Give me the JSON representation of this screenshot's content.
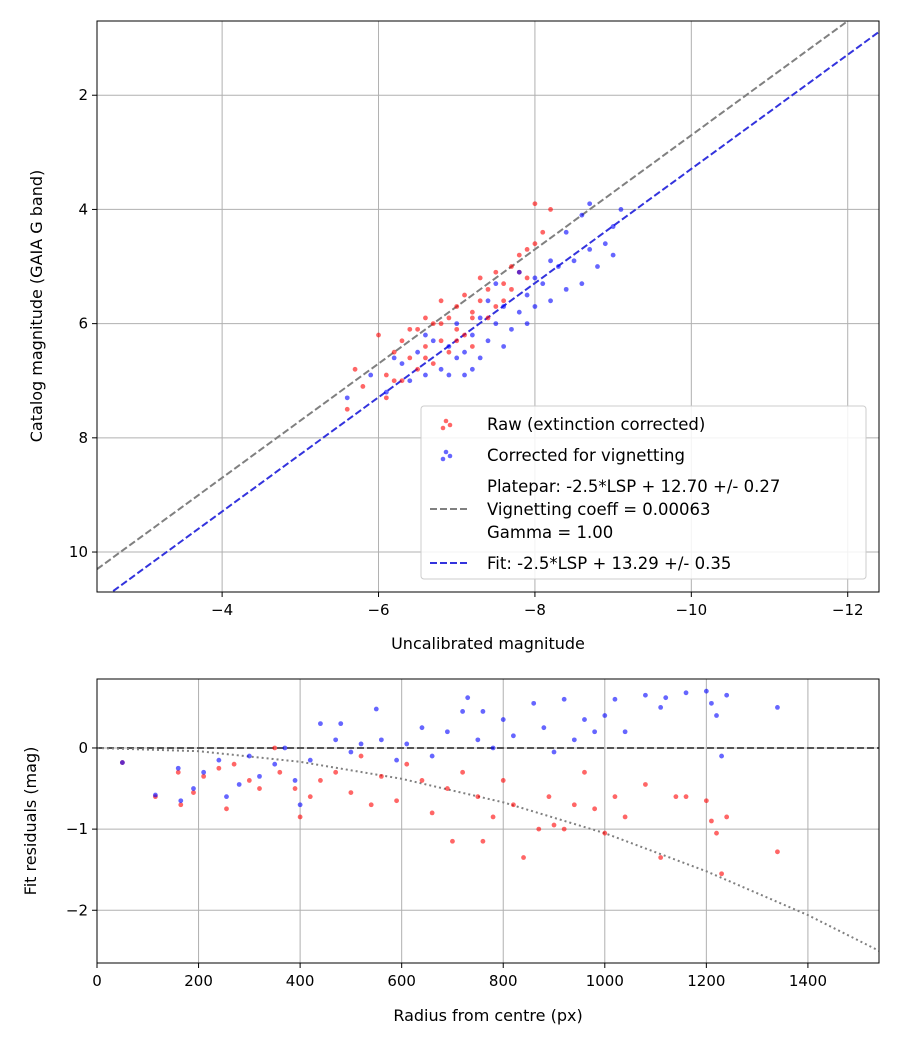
{
  "chart_data": [
    {
      "type": "scatter",
      "title": "",
      "xlabel": "Uncalibrated magnitude",
      "ylabel": "Catalog magnitude (GAIA G band)",
      "xlim": [
        -2.4,
        -12.4
      ],
      "ylim": [
        10.7,
        0.7
      ],
      "x_inverted": true,
      "y_inverted": true,
      "xticks": [
        -4,
        -6,
        -8,
        -10,
        -12
      ],
      "yticks": [
        2,
        4,
        6,
        8,
        10
      ],
      "xtick_labels": [
        "−4",
        "−6",
        "−8",
        "−10",
        "−12"
      ],
      "ytick_labels": [
        "2",
        "4",
        "6",
        "8",
        "10"
      ],
      "grid": true,
      "legend_position": "lower-right",
      "colors": {
        "raw": "#ff0000",
        "corrected": "#0000ff",
        "platepar": "#808080",
        "fit": "#3333dd"
      },
      "series": [
        {
          "name": "Raw (extinction corrected)",
          "kind": "points",
          "points": [
            [
              -5.6,
              7.5
            ],
            [
              -5.8,
              7.1
            ],
            [
              -5.7,
              6.8
            ],
            [
              -6.0,
              6.2
            ],
            [
              -6.1,
              6.9
            ],
            [
              -6.1,
              7.3
            ],
            [
              -6.2,
              6.5
            ],
            [
              -6.3,
              7.0
            ],
            [
              -6.3,
              6.3
            ],
            [
              -6.4,
              6.6
            ],
            [
              -6.5,
              6.1
            ],
            [
              -6.5,
              6.8
            ],
            [
              -6.6,
              6.4
            ],
            [
              -6.6,
              5.9
            ],
            [
              -6.7,
              6.7
            ],
            [
              -6.7,
              6.0
            ],
            [
              -6.8,
              6.3
            ],
            [
              -6.8,
              5.6
            ],
            [
              -6.9,
              6.5
            ],
            [
              -6.9,
              5.9
            ],
            [
              -7.0,
              6.1
            ],
            [
              -7.0,
              5.7
            ],
            [
              -7.1,
              6.2
            ],
            [
              -7.1,
              5.5
            ],
            [
              -7.2,
              5.8
            ],
            [
              -7.2,
              6.4
            ],
            [
              -7.3,
              5.6
            ],
            [
              -7.3,
              5.2
            ],
            [
              -7.4,
              5.9
            ],
            [
              -7.4,
              5.4
            ],
            [
              -7.5,
              5.1
            ],
            [
              -7.5,
              5.7
            ],
            [
              -7.6,
              5.3
            ],
            [
              -7.6,
              5.6
            ],
            [
              -7.7,
              5.0
            ],
            [
              -7.7,
              5.4
            ],
            [
              -7.8,
              4.8
            ],
            [
              -7.8,
              5.1
            ],
            [
              -7.9,
              4.7
            ],
            [
              -8.0,
              3.9
            ],
            [
              -8.1,
              4.4
            ],
            [
              -8.2,
              4.0
            ],
            [
              -8.0,
              4.6
            ],
            [
              -7.9,
              5.2
            ],
            [
              -6.4,
              6.1
            ],
            [
              -6.6,
              6.6
            ],
            [
              -6.2,
              7.0
            ],
            [
              -6.8,
              6.0
            ],
            [
              -7.0,
              6.3
            ],
            [
              -7.2,
              5.9
            ]
          ]
        },
        {
          "name": "Corrected for vignetting",
          "kind": "points",
          "points": [
            [
              -5.6,
              7.3
            ],
            [
              -5.9,
              6.9
            ],
            [
              -6.1,
              7.2
            ],
            [
              -6.3,
              6.7
            ],
            [
              -6.4,
              7.0
            ],
            [
              -6.5,
              6.5
            ],
            [
              -6.6,
              6.9
            ],
            [
              -6.7,
              6.3
            ],
            [
              -6.8,
              6.8
            ],
            [
              -6.9,
              6.4
            ],
            [
              -7.0,
              6.6
            ],
            [
              -7.0,
              6.0
            ],
            [
              -7.1,
              6.5
            ],
            [
              -7.2,
              6.2
            ],
            [
              -7.3,
              6.6
            ],
            [
              -7.3,
              5.9
            ],
            [
              -7.4,
              6.3
            ],
            [
              -7.5,
              6.0
            ],
            [
              -7.6,
              6.4
            ],
            [
              -7.6,
              5.7
            ],
            [
              -7.7,
              6.1
            ],
            [
              -7.8,
              5.8
            ],
            [
              -7.9,
              6.0
            ],
            [
              -7.9,
              5.5
            ],
            [
              -8.0,
              5.7
            ],
            [
              -8.1,
              5.3
            ],
            [
              -8.2,
              5.6
            ],
            [
              -8.3,
              5.0
            ],
            [
              -8.4,
              5.4
            ],
            [
              -8.5,
              4.9
            ],
            [
              -8.6,
              5.3
            ],
            [
              -8.7,
              4.7
            ],
            [
              -8.8,
              5.0
            ],
            [
              -8.9,
              4.6
            ],
            [
              -9.0,
              4.3
            ],
            [
              -9.1,
              4.0
            ],
            [
              -8.7,
              3.9
            ],
            [
              -8.4,
              4.4
            ],
            [
              -8.2,
              4.9
            ],
            [
              -7.5,
              5.3
            ],
            [
              -7.8,
              5.1
            ],
            [
              -6.9,
              6.9
            ],
            [
              -6.6,
              6.2
            ],
            [
              -7.2,
              6.8
            ],
            [
              -8.0,
              5.2
            ],
            [
              -9.0,
              4.8
            ],
            [
              -8.6,
              4.1
            ],
            [
              -7.4,
              5.6
            ],
            [
              -6.2,
              6.6
            ],
            [
              -7.1,
              6.9
            ]
          ]
        },
        {
          "name": "Platepar: -2.5*LSP + 12.70 +/- 0.27\nVignetting coeff = 0.00063\nGamma = 1.00",
          "kind": "line",
          "slope": 1,
          "intercept": 12.7
        },
        {
          "name": "Fit: -2.5*LSP + 13.29 +/- 0.35",
          "kind": "line",
          "slope": 1,
          "intercept": 13.29
        }
      ]
    },
    {
      "type": "scatter",
      "title": "",
      "xlabel": "Radius from centre (px)",
      "ylabel": "Fit residuals (mag)",
      "xlim": [
        0,
        1540
      ],
      "ylim": [
        -2.65,
        0.85
      ],
      "xticks": [
        0,
        200,
        400,
        600,
        800,
        1000,
        1200,
        1400
      ],
      "yticks": [
        0,
        -1,
        -2
      ],
      "xtick_labels": [
        "0",
        "200",
        "400",
        "600",
        "800",
        "1000",
        "1200",
        "1400"
      ],
      "ytick_labels": [
        "0",
        "−1",
        "−2"
      ],
      "grid": true,
      "colors": {
        "raw": "#ff0000",
        "corrected": "#0000ff",
        "zero_line": "#555555",
        "vignetting_curve": "#808080"
      },
      "series": [
        {
          "name": "Raw (extinction corrected)",
          "kind": "points",
          "points": [
            [
              50,
              -0.18
            ],
            [
              115,
              -0.6
            ],
            [
              160,
              -0.3
            ],
            [
              165,
              -0.7
            ],
            [
              190,
              -0.55
            ],
            [
              210,
              -0.35
            ],
            [
              240,
              -0.25
            ],
            [
              255,
              -0.75
            ],
            [
              270,
              -0.2
            ],
            [
              300,
              -0.4
            ],
            [
              320,
              -0.5
            ],
            [
              350,
              0.0
            ],
            [
              360,
              -0.3
            ],
            [
              390,
              -0.5
            ],
            [
              400,
              -0.85
            ],
            [
              420,
              -0.6
            ],
            [
              440,
              -0.4
            ],
            [
              470,
              -0.3
            ],
            [
              500,
              -0.55
            ],
            [
              520,
              -0.1
            ],
            [
              540,
              -0.7
            ],
            [
              560,
              -0.35
            ],
            [
              590,
              -0.65
            ],
            [
              610,
              -0.2
            ],
            [
              640,
              -0.4
            ],
            [
              660,
              -0.8
            ],
            [
              690,
              -0.5
            ],
            [
              700,
              -1.15
            ],
            [
              720,
              -0.3
            ],
            [
              750,
              -0.6
            ],
            [
              760,
              -1.15
            ],
            [
              780,
              -0.85
            ],
            [
              800,
              -0.4
            ],
            [
              820,
              -0.7
            ],
            [
              840,
              -1.35
            ],
            [
              870,
              -1.0
            ],
            [
              890,
              -0.6
            ],
            [
              900,
              -0.95
            ],
            [
              920,
              -1.0
            ],
            [
              940,
              -0.7
            ],
            [
              960,
              -0.3
            ],
            [
              980,
              -0.75
            ],
            [
              1000,
              -1.05
            ],
            [
              1020,
              -0.6
            ],
            [
              1040,
              -0.85
            ],
            [
              1080,
              -0.45
            ],
            [
              1110,
              -1.35
            ],
            [
              1140,
              -0.6
            ],
            [
              1160,
              -0.6
            ],
            [
              1200,
              -0.65
            ],
            [
              1210,
              -0.9
            ],
            [
              1220,
              -1.05
            ],
            [
              1230,
              -1.55
            ],
            [
              1240,
              -0.85
            ],
            [
              1340,
              -1.28
            ]
          ]
        },
        {
          "name": "Corrected for vignetting",
          "kind": "points",
          "points": [
            [
              50,
              -0.18
            ],
            [
              115,
              -0.58
            ],
            [
              160,
              -0.25
            ],
            [
              165,
              -0.65
            ],
            [
              190,
              -0.5
            ],
            [
              210,
              -0.3
            ],
            [
              240,
              -0.15
            ],
            [
              255,
              -0.6
            ],
            [
              280,
              -0.45
            ],
            [
              300,
              -0.1
            ],
            [
              320,
              -0.35
            ],
            [
              350,
              -0.2
            ],
            [
              370,
              0.0
            ],
            [
              390,
              -0.4
            ],
            [
              400,
              -0.7
            ],
            [
              420,
              -0.15
            ],
            [
              440,
              0.3
            ],
            [
              470,
              0.1
            ],
            [
              480,
              0.3
            ],
            [
              500,
              -0.05
            ],
            [
              520,
              0.05
            ],
            [
              550,
              0.48
            ],
            [
              560,
              0.1
            ],
            [
              590,
              -0.15
            ],
            [
              610,
              0.05
            ],
            [
              640,
              0.25
            ],
            [
              660,
              -0.1
            ],
            [
              690,
              0.2
            ],
            [
              720,
              0.45
            ],
            [
              730,
              0.62
            ],
            [
              750,
              0.1
            ],
            [
              760,
              0.45
            ],
            [
              780,
              0.0
            ],
            [
              800,
              0.35
            ],
            [
              820,
              0.15
            ],
            [
              860,
              0.55
            ],
            [
              880,
              0.25
            ],
            [
              900,
              -0.05
            ],
            [
              920,
              0.6
            ],
            [
              940,
              0.1
            ],
            [
              960,
              0.35
            ],
            [
              980,
              0.2
            ],
            [
              1000,
              0.4
            ],
            [
              1020,
              0.6
            ],
            [
              1040,
              0.2
            ],
            [
              1080,
              0.65
            ],
            [
              1110,
              0.5
            ],
            [
              1120,
              0.62
            ],
            [
              1160,
              0.68
            ],
            [
              1200,
              0.7
            ],
            [
              1210,
              0.55
            ],
            [
              1220,
              0.4
            ],
            [
              1230,
              -0.1
            ],
            [
              1240,
              0.65
            ],
            [
              1340,
              0.5
            ]
          ]
        },
        {
          "name": "",
          "kind": "hline",
          "y": 0
        },
        {
          "name": "",
          "kind": "curve",
          "points": [
            [
              0,
              0.0
            ],
            [
              200,
              -0.04
            ],
            [
              400,
              -0.17
            ],
            [
              600,
              -0.38
            ],
            [
              800,
              -0.67
            ],
            [
              1000,
              -1.05
            ],
            [
              1200,
              -1.52
            ],
            [
              1400,
              -2.06
            ],
            [
              1540,
              -2.5
            ]
          ]
        }
      ]
    }
  ]
}
